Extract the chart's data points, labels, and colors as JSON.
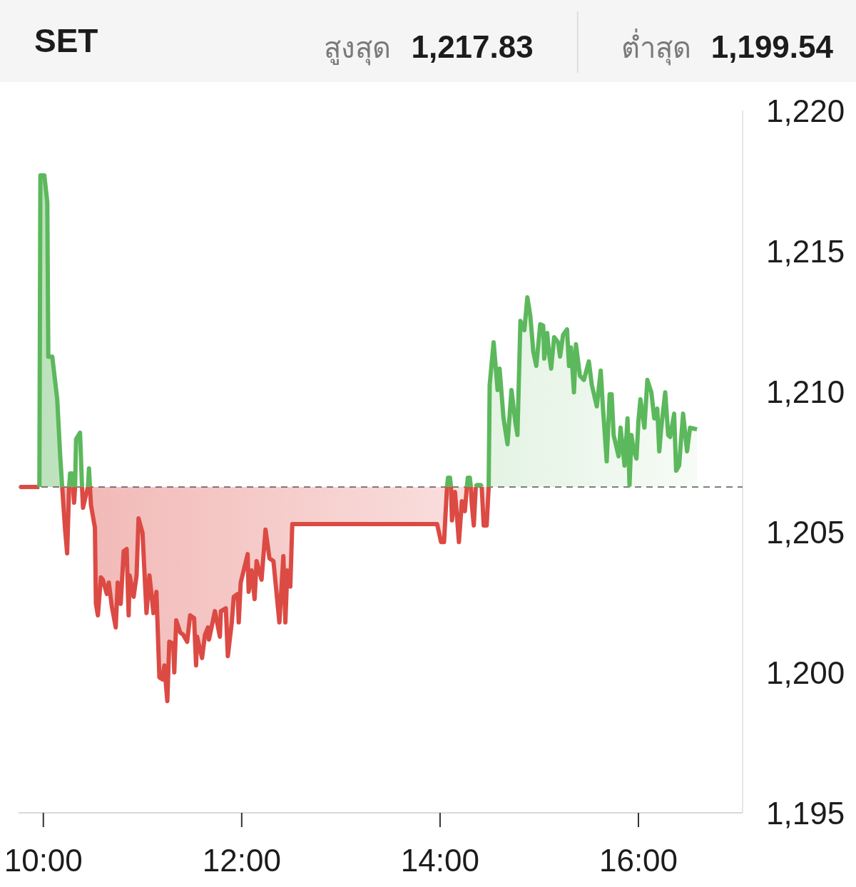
{
  "chart_data": {
    "type": "area",
    "title": "SET",
    "annotations": [
      "สูงสุด",
      "1,217.83",
      "ต่ำสุด",
      "1,199.54"
    ],
    "xlim": [
      9.75,
      17.05
    ],
    "xticks": [
      {
        "value": 10,
        "label": "10:00"
      },
      {
        "value": 12,
        "label": "12:00"
      },
      {
        "value": 14,
        "label": "14:00"
      },
      {
        "value": 16,
        "label": "16:00"
      }
    ],
    "ylim": [
      1195,
      1220
    ],
    "yticks": [
      {
        "value": 1195,
        "label": "1,195"
      },
      {
        "value": 1200,
        "label": "1,200"
      },
      {
        "value": 1205,
        "label": "1,205"
      },
      {
        "value": 1210,
        "label": "1,210"
      },
      {
        "value": 1215,
        "label": "1,215"
      },
      {
        "value": 1220,
        "label": "1,220"
      }
    ],
    "ref_lines": [
      {
        "axis": "y",
        "value": 1206.6,
        "color": "#555555",
        "line_style": "dashed"
      }
    ],
    "series": [
      {
        "type": "line",
        "color": "#dc4a44",
        "x": [
          9.76,
          9.96
        ],
        "values": [
          1206.6,
          1206.6
        ]
      },
      {
        "color": "#5cb85c",
        "x": [
          9.96,
          9.97,
          10.01,
          10.04,
          10.05,
          10.09,
          10.14,
          10.17,
          10.19
        ],
        "values": [
          1206.6,
          1217.69,
          1217.69,
          1216.73,
          1211.24,
          1211.24,
          1209.72,
          1207.69,
          1206.6
        ]
      },
      {
        "color": "#dc4a44",
        "x": [
          10.19,
          10.22,
          10.24,
          10.26
        ],
        "values": [
          1206.6,
          1205.05,
          1204.24,
          1206.6
        ]
      },
      {
        "type": "line",
        "color": "#5cb85c",
        "x": [
          10.26,
          10.27,
          10.29,
          10.3
        ],
        "values": [
          1206.6,
          1207.08,
          1207.08,
          1206.6
        ]
      },
      {
        "type": "line",
        "color": "#dc4a44",
        "x": [
          10.3,
          10.31,
          10.32
        ],
        "values": [
          1206.6,
          1206.04,
          1206.6
        ]
      },
      {
        "type": "line",
        "color": "#5cb85c",
        "x": [
          10.32,
          10.33,
          10.37,
          10.39
        ],
        "values": [
          1206.6,
          1208.3,
          1208.53,
          1206.6
        ]
      },
      {
        "type": "line",
        "color": "#dc4a44",
        "x": [
          10.39,
          10.4,
          10.42,
          10.45
        ],
        "values": [
          1206.6,
          1205.86,
          1206.17,
          1206.6
        ]
      },
      {
        "type": "line",
        "color": "#5cb85c",
        "x": [
          10.45,
          10.46,
          10.47
        ],
        "values": [
          1206.6,
          1207.26,
          1206.6
        ]
      },
      {
        "color": "#dc4a44",
        "x": [
          10.47,
          10.48,
          10.52,
          10.53,
          10.55,
          10.58,
          10.6,
          10.64,
          10.66,
          10.69,
          10.73,
          10.75,
          10.78,
          10.81,
          10.84,
          10.86,
          10.87,
          10.91,
          10.94,
          10.96,
          11.0,
          11.02,
          11.04,
          11.07,
          11.11,
          11.14,
          11.17,
          11.2,
          11.22,
          11.25,
          11.27,
          11.31,
          11.32,
          11.34,
          11.38,
          11.41,
          11.45,
          11.48,
          11.52,
          11.54,
          11.55,
          11.6,
          11.63,
          11.66,
          11.67,
          11.73,
          11.78,
          11.79,
          11.84,
          11.86,
          11.9,
          11.92,
          11.96,
          11.97,
          11.99,
          12.06,
          12.07,
          12.1,
          12.13,
          12.15,
          12.2,
          12.24,
          12.28,
          12.32,
          12.38,
          12.42,
          12.44,
          12.46,
          12.49,
          12.51,
          13.97,
          14.01,
          14.04,
          14.07
        ],
        "values": [
          1206.6,
          1205.96,
          1205.15,
          1202.44,
          1202.03,
          1203.38,
          1203.3,
          1202.79,
          1203.2,
          1202.36,
          1201.6,
          1203.2,
          1202.44,
          1204.31,
          1204.39,
          1202.03,
          1203.45,
          1202.69,
          1203.45,
          1205.48,
          1204.97,
          1203.55,
          1202.11,
          1203.45,
          1202.11,
          1202.87,
          1199.82,
          1199.75,
          1200.25,
          1198.98,
          1201.09,
          1201.02,
          1200.0,
          1201.85,
          1201.42,
          1201.34,
          1201.09,
          1202.03,
          1201.93,
          1200.25,
          1201.27,
          1200.51,
          1201.34,
          1201.6,
          1201.17,
          1202.18,
          1201.27,
          1202.18,
          1202.28,
          1200.58,
          1201.78,
          1202.69,
          1202.79,
          1201.78,
          1203.2,
          1204.21,
          1202.87,
          1203.63,
          1202.61,
          1203.96,
          1203.3,
          1205.08,
          1204.06,
          1203.96,
          1201.78,
          1204.14,
          1201.78,
          1203.63,
          1203.05,
          1205.28,
          1205.28,
          1204.64,
          1204.64,
          1206.6
        ]
      },
      {
        "type": "line",
        "color": "#5cb85c",
        "x": [
          14.07,
          14.08,
          14.1,
          14.11
        ],
        "values": [
          1206.6,
          1206.93,
          1206.93,
          1206.6
        ]
      },
      {
        "color": "#dc4a44",
        "x": [
          14.11,
          14.12,
          14.15,
          14.17,
          14.19,
          14.22,
          14.25,
          14.27
        ],
        "values": [
          1206.6,
          1205.41,
          1206.42,
          1205.58,
          1204.64,
          1206.09,
          1205.74,
          1206.6
        ]
      },
      {
        "type": "line",
        "color": "#5cb85c",
        "x": [
          14.27,
          14.28,
          14.3,
          14.31
        ],
        "values": [
          1206.6,
          1206.93,
          1206.93,
          1206.6
        ]
      },
      {
        "type": "line",
        "color": "#dc4a44",
        "x": [
          14.31,
          14.32,
          14.34,
          14.36
        ],
        "values": [
          1206.6,
          1205.99,
          1205.23,
          1206.6
        ]
      },
      {
        "color": "#5cb85c",
        "x": [
          14.36,
          14.37,
          14.41,
          14.42
        ],
        "values": [
          1206.6,
          1206.67,
          1206.67,
          1206.6
        ]
      },
      {
        "color": "#dc4a44",
        "x": [
          14.42,
          14.44,
          14.47,
          14.49
        ],
        "values": [
          1206.6,
          1205.23,
          1205.23,
          1206.6
        ]
      },
      {
        "color": "#5cb85c",
        "x": [
          14.49,
          14.5,
          14.54,
          14.58,
          14.6,
          14.64,
          14.68,
          14.72,
          14.76,
          14.78,
          14.81,
          14.85,
          14.88,
          14.91,
          14.94,
          14.97,
          15.01,
          15.04,
          15.05,
          15.08,
          15.1,
          15.12,
          15.15,
          15.19,
          15.21,
          15.24,
          15.28,
          15.3,
          15.32,
          15.35,
          15.37,
          15.41,
          15.45,
          15.5,
          15.53,
          15.58,
          15.62,
          15.64,
          15.68,
          15.71,
          15.73,
          15.75,
          15.8,
          15.82,
          15.86,
          15.89,
          15.91,
          15.93,
          15.95,
          15.98,
          16.0,
          16.02,
          16.06,
          16.09,
          16.13,
          16.16,
          16.19,
          16.21,
          16.23,
          16.27,
          16.3,
          16.32,
          16.36,
          16.38,
          16.41,
          16.45,
          16.49,
          16.52,
          16.59
        ],
        "values": [
          1206.6,
          1210.23,
          1211.75,
          1210.05,
          1210.81,
          1209.04,
          1208.12,
          1210.05,
          1208.88,
          1208.45,
          1212.51,
          1212.18,
          1213.35,
          1212.69,
          1211.42,
          1210.91,
          1212.39,
          1212.34,
          1211.17,
          1212.08,
          1211.32,
          1210.81,
          1211.93,
          1211.75,
          1211.24,
          1212.01,
          1212.21,
          1210.91,
          1211.57,
          1209.97,
          1211.68,
          1210.56,
          1210.41,
          1211.07,
          1210.23,
          1209.47,
          1210.74,
          1209.54,
          1207.51,
          1209.9,
          1209.9,
          1208.45,
          1207.69,
          1208.71,
          1207.36,
          1209.04,
          1206.67,
          1208.45,
          1207.94,
          1207.61,
          1208.96,
          1209.72,
          1208.71,
          1210.41,
          1209.97,
          1209.04,
          1209.39,
          1207.87,
          1208.71,
          1209.97,
          1208.45,
          1208.38,
          1209.21,
          1207.18,
          1207.36,
          1209.21,
          1207.87,
          1208.71,
          1208.65
        ]
      }
    ]
  }
}
